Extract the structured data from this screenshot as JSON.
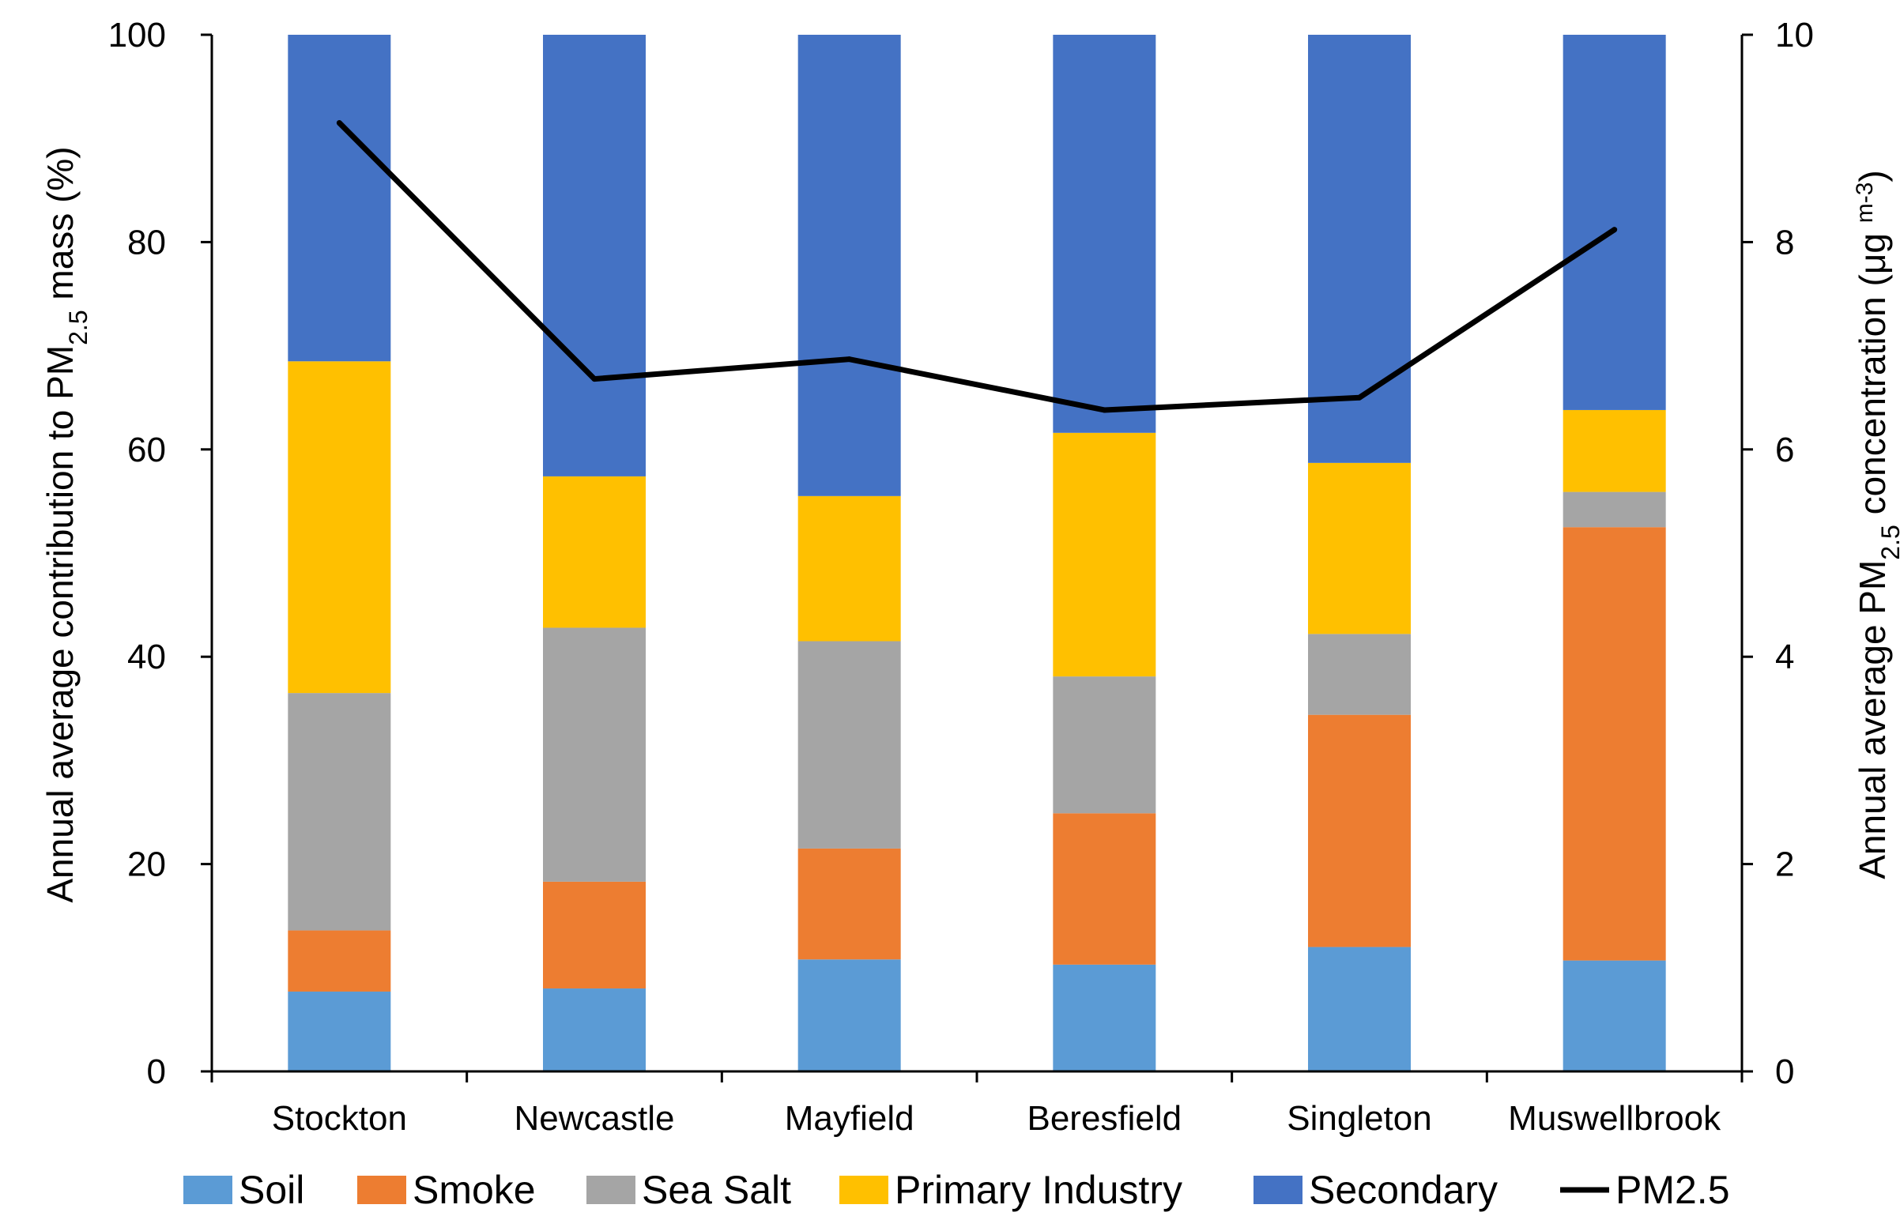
{
  "chart_data": {
    "type": "bar",
    "stacked": true,
    "categories": [
      "Stockton",
      "Newcastle",
      "Mayfield",
      "Beresfield",
      "Singleton",
      "Muswellbrook"
    ],
    "series": [
      {
        "name": "Soil",
        "color": "#5B9BD5",
        "values": [
          7.7,
          8.0,
          10.8,
          10.3,
          12.0,
          10.7
        ]
      },
      {
        "name": "Smoke",
        "color": "#ED7D31",
        "values": [
          5.9,
          10.3,
          10.7,
          14.6,
          22.4,
          41.8
        ]
      },
      {
        "name": "Sea Salt",
        "color": "#A5A5A5",
        "values": [
          22.9,
          24.5,
          20.0,
          13.2,
          7.8,
          3.4
        ]
      },
      {
        "name": "Primary Industry",
        "color": "#FFC000",
        "values": [
          32.0,
          14.6,
          14.0,
          23.5,
          16.5,
          7.9
        ]
      },
      {
        "name": "Secondary",
        "color": "#4472C4",
        "values": [
          31.5,
          42.6,
          44.5,
          38.4,
          41.3,
          36.2
        ]
      }
    ],
    "line_series": {
      "name": "PM2.5",
      "color": "#000000",
      "axis": "right",
      "values": [
        9.15,
        6.68,
        6.87,
        6.38,
        6.5,
        8.12
      ]
    },
    "left_axis": {
      "title_pre": "Annual average contribution to PM",
      "title_sub": "2.5",
      "title_post": " mass (%)",
      "ylim": [
        0,
        100
      ],
      "ticks": [
        "0",
        "20",
        "40",
        "60",
        "80",
        "100"
      ]
    },
    "right_axis": {
      "title_pre": "Annual average PM",
      "title_sub": "2.5",
      "title_post": " concentration (μg ",
      "title_sup": "m-3",
      "title_end": ")",
      "ylim": [
        0,
        10
      ],
      "ticks": [
        "0",
        "2",
        "4",
        "6",
        "8",
        "10"
      ]
    },
    "legend": {
      "position": "bottom",
      "items": [
        "Soil",
        "Smoke",
        "Sea Salt",
        "Primary Industry",
        "Secondary",
        "PM2.5"
      ]
    },
    "grid": false
  }
}
